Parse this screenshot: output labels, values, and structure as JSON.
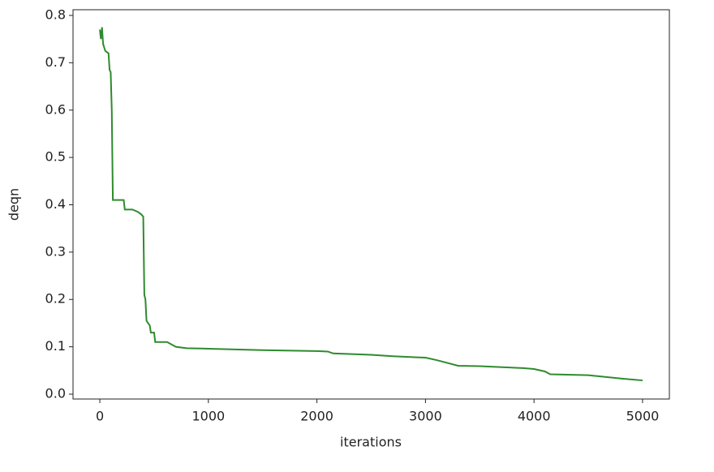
{
  "chart_data": {
    "type": "line",
    "x_label": "iterations",
    "y_label": "deqn",
    "x": [
      0,
      10,
      20,
      30,
      50,
      80,
      90,
      100,
      110,
      120,
      220,
      230,
      300,
      350,
      380,
      400,
      410,
      420,
      430,
      460,
      470,
      500,
      510,
      620,
      700,
      800,
      1000,
      1500,
      2000,
      2100,
      2150,
      2500,
      2700,
      3000,
      3100,
      3200,
      3300,
      3500,
      3900,
      4000,
      4100,
      4150,
      4500,
      4800,
      5000
    ],
    "series": [
      {
        "name": "deqn",
        "color": "#2e8b2e",
        "values": [
          0.77,
          0.75,
          0.775,
          0.74,
          0.725,
          0.72,
          0.685,
          0.68,
          0.6,
          0.41,
          0.41,
          0.39,
          0.39,
          0.385,
          0.38,
          0.375,
          0.21,
          0.2,
          0.155,
          0.145,
          0.13,
          0.13,
          0.11,
          0.11,
          0.1,
          0.097,
          0.096,
          0.093,
          0.091,
          0.09,
          0.086,
          0.083,
          0.08,
          0.077,
          0.072,
          0.066,
          0.06,
          0.059,
          0.055,
          0.053,
          0.048,
          0.042,
          0.04,
          0.033,
          0.029
        ]
      }
    ],
    "xlim": [
      -247,
      5247
    ],
    "ylim": [
      -0.0103,
      0.812
    ],
    "xticks": [
      0,
      1000,
      2000,
      3000,
      4000,
      5000
    ],
    "yticks": [
      {
        "value": 0,
        "label": "0.0"
      },
      0.1,
      0.2,
      0.3,
      0.4,
      0.5,
      0.6,
      0.7,
      0.8
    ],
    "grid": false
  }
}
